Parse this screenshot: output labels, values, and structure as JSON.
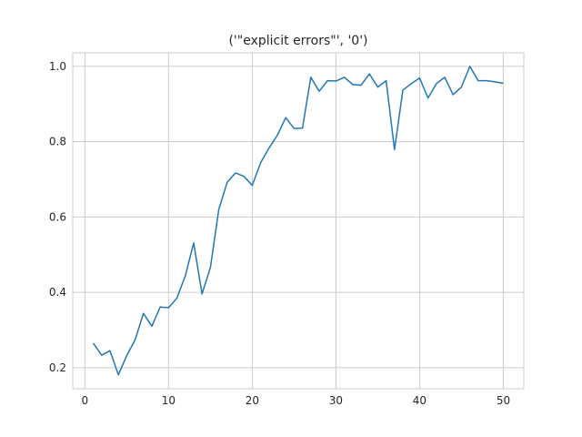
{
  "chart_data": {
    "type": "line",
    "title": "('\"explicit errors\"', '0')",
    "xlabel": "",
    "ylabel": "",
    "xlim": [
      -1.45,
      52.45
    ],
    "ylim": [
      0.144,
      1.036
    ],
    "xticks": [
      0,
      10,
      20,
      30,
      40,
      50
    ],
    "yticks": [
      0.2,
      0.4,
      0.6,
      0.8,
      1.0
    ],
    "xtick_labels": [
      "0",
      "10",
      "20",
      "30",
      "40",
      "50"
    ],
    "ytick_labels": [
      "0.2",
      "0.4",
      "0.6",
      "0.8",
      "1.0"
    ],
    "grid": true,
    "legend": "none",
    "color": "#1f77b4",
    "series": [
      {
        "x": [
          1,
          2,
          3,
          4,
          5,
          6,
          7,
          8,
          9,
          10,
          11,
          12,
          13,
          14,
          15,
          16,
          17,
          18,
          19,
          20,
          21,
          22,
          23,
          24,
          25,
          26,
          27,
          28,
          29,
          30,
          31,
          32,
          33,
          34,
          35,
          36,
          37,
          38,
          39,
          40,
          41,
          42,
          43,
          44,
          45,
          46,
          47,
          48,
          49,
          50
        ],
        "values": [
          0.265,
          0.233,
          0.245,
          0.181,
          0.232,
          0.274,
          0.344,
          0.31,
          0.361,
          0.359,
          0.385,
          0.444,
          0.531,
          0.396,
          0.466,
          0.62,
          0.692,
          0.717,
          0.708,
          0.684,
          0.744,
          0.783,
          0.817,
          0.864,
          0.835,
          0.836,
          0.971,
          0.934,
          0.962,
          0.961,
          0.971,
          0.952,
          0.95,
          0.98,
          0.945,
          0.962,
          0.779,
          0.937,
          0.954,
          0.969,
          0.916,
          0.954,
          0.971,
          0.925,
          0.945,
          1.0,
          0.962,
          0.962,
          0.959,
          0.955
        ]
      }
    ]
  }
}
